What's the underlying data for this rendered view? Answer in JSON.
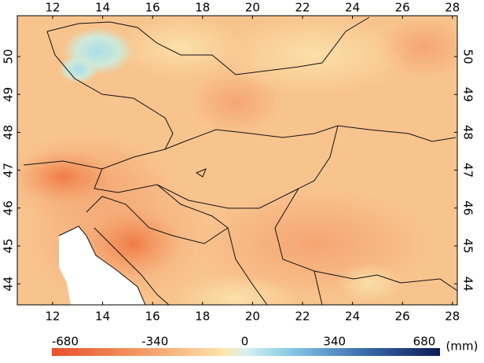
{
  "map": {
    "x_ticks": [
      12,
      14,
      16,
      18,
      20,
      22,
      24,
      26,
      28
    ],
    "y_ticks": [
      50,
      49,
      48,
      47,
      46,
      45,
      44
    ],
    "colorbar": {
      "ticks": [
        -680,
        -340,
        0,
        340,
        680
      ],
      "unit": "(mm)"
    }
  }
}
